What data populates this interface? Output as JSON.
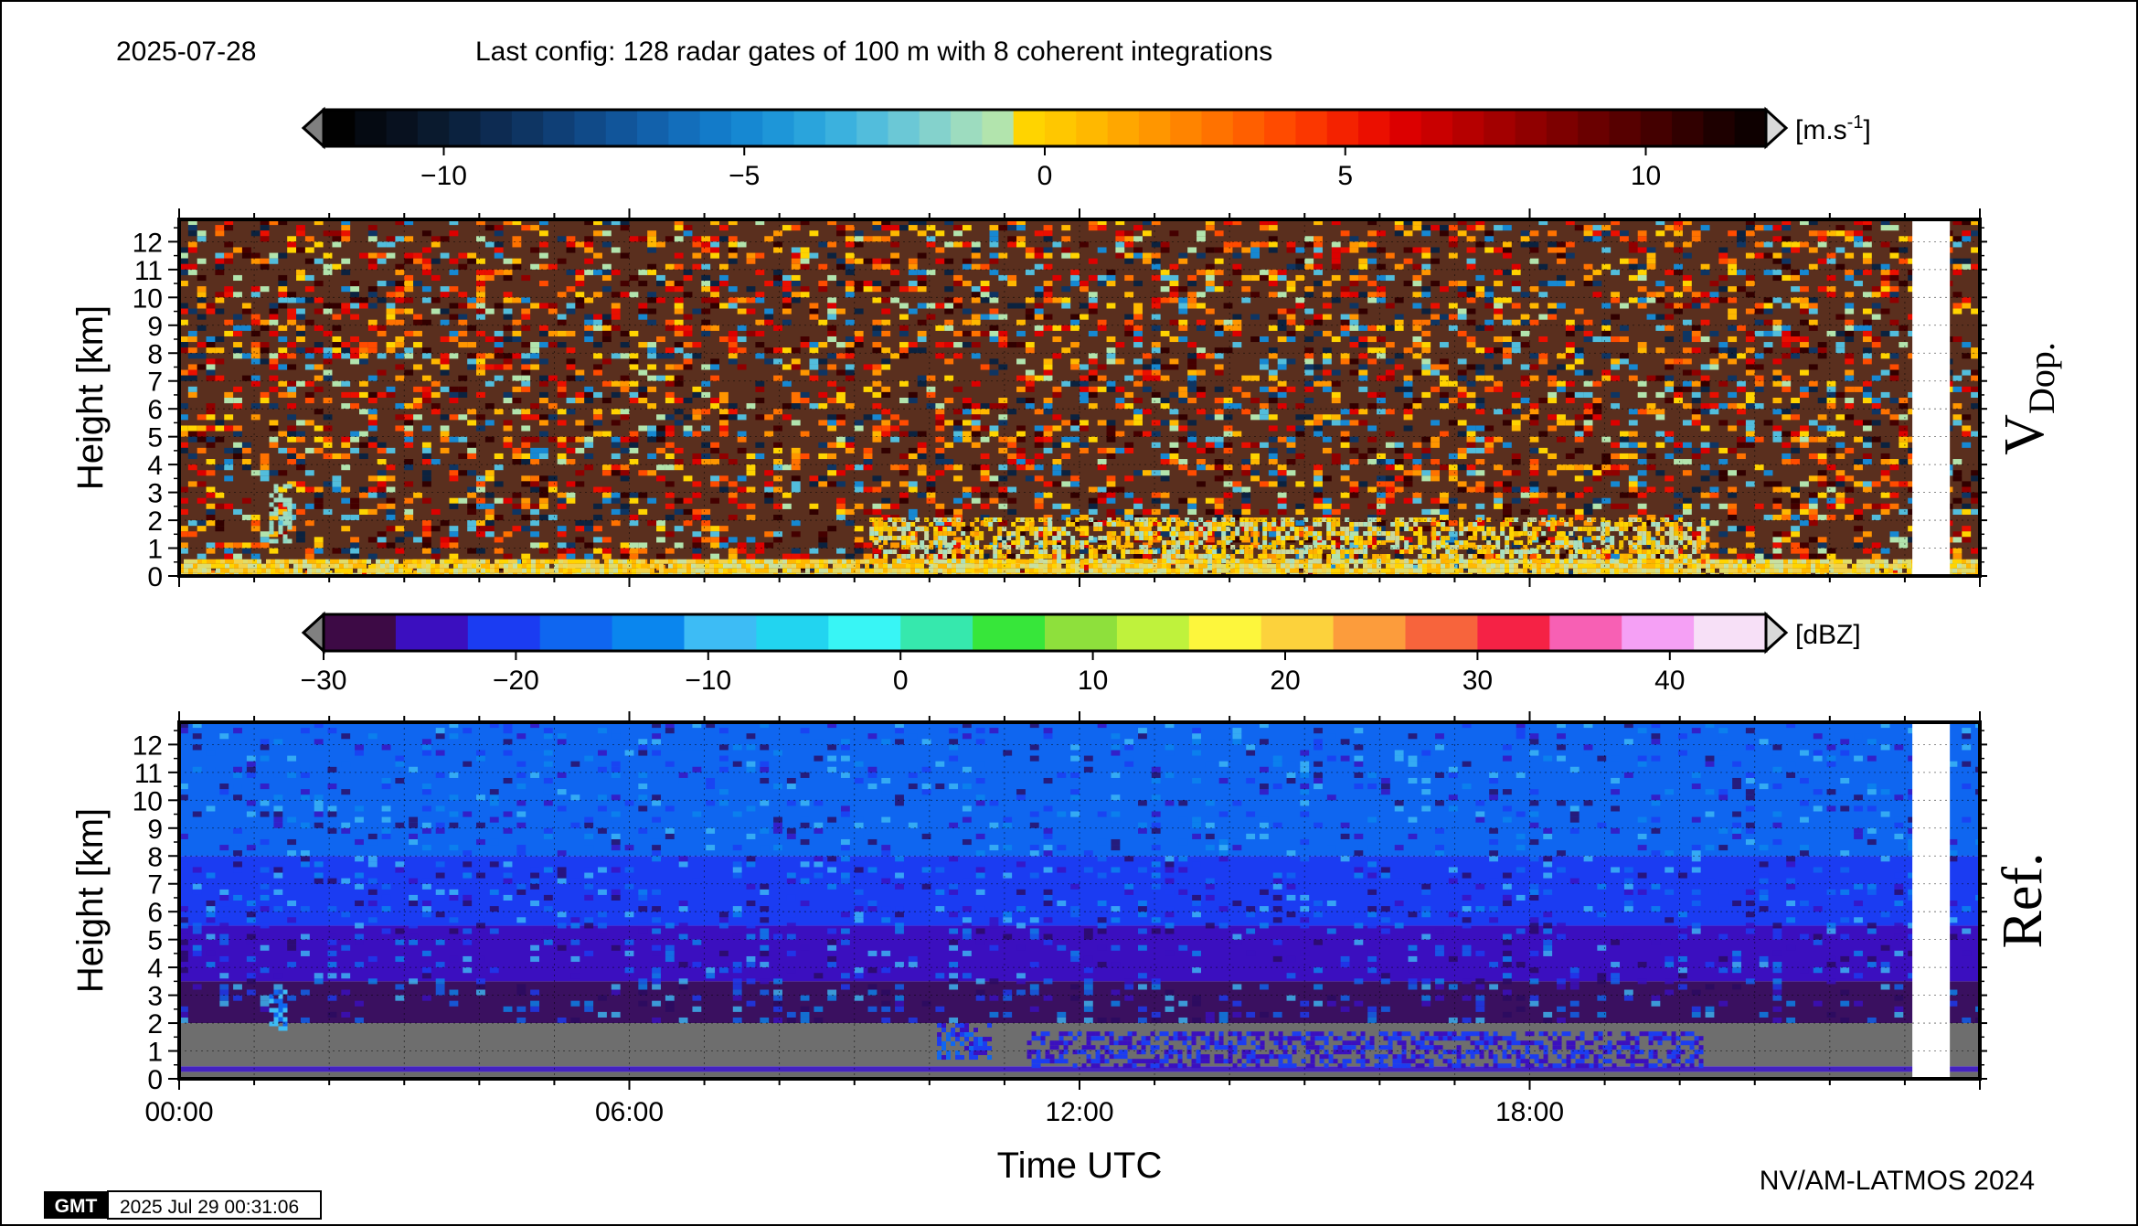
{
  "header": {
    "date": "2025-07-28",
    "config": "Last config: 128 radar gates of 100 m with 8 coherent integrations"
  },
  "footer": {
    "credit": "NV/AM-LATMOS 2024",
    "gmt_logo": "GMT",
    "gmt_timestamp": "2025 Jul 29 00:31:06"
  },
  "colors": {
    "frame": "#000000",
    "gap": "#ffffff",
    "noise_gray": "#6e6e6e"
  },
  "chart_data": [
    {
      "type": "heatmap",
      "panel_label": "V",
      "panel_label_sub": "Dop.",
      "ylabel": "Height [km]",
      "ylim": [
        0,
        12.8
      ],
      "yticks": [
        "0",
        "1",
        "2",
        "3",
        "4",
        "5",
        "6",
        "7",
        "8",
        "9",
        "10",
        "11",
        "12"
      ],
      "xlim": [
        0,
        24
      ],
      "data_gap_hours": [
        23.1,
        23.6
      ],
      "colorbar": {
        "unit_base": "[m.s",
        "unit_exp": "-1",
        "unit_close": "]",
        "range": [
          -12,
          12
        ],
        "tick_values": [
          -10,
          -5,
          0,
          5,
          10
        ],
        "tick_labels": [
          "−10",
          "−5",
          "0",
          "5",
          "10"
        ],
        "colors": [
          "#010101",
          "#050a12",
          "#08111f",
          "#0a1a2e",
          "#0b223f",
          "#0d2b52",
          "#0e3563",
          "#0f3f76",
          "#104a88",
          "#11559a",
          "#1261ab",
          "#136ebb",
          "#137bc9",
          "#1688d2",
          "#1e96d8",
          "#2aa4dc",
          "#3bb1de",
          "#52bddc",
          "#6bc8d6",
          "#84d2cc",
          "#9ddcbf",
          "#b2e4ad",
          "#ffd400",
          "#ffc700",
          "#ffb800",
          "#ffa700",
          "#ff9600",
          "#ff8400",
          "#ff7200",
          "#ff5f00",
          "#ff4b00",
          "#fb3700",
          "#f42200",
          "#eb0f00",
          "#dc0000",
          "#c90000",
          "#b60000",
          "#a30000",
          "#900000",
          "#7d0000",
          "#6a0000",
          "#570000",
          "#440000",
          "#310000",
          "#1e0000",
          "#0e0000"
        ]
      },
      "features": [
        {
          "label": "near-surface layer",
          "y": [
            0,
            0.6
          ],
          "x": [
            0,
            24
          ],
          "colors": [
            "#f2d24a",
            "#ffd400",
            "#ffb800",
            "#e0dc6a",
            "#c8e0a0"
          ]
        },
        {
          "label": "clouds 0.5-2 km",
          "y": [
            0.5,
            2.1
          ],
          "x": [
            9.2,
            20.3
          ],
          "colors": [
            "#ffd400",
            "#f2c200",
            "#c8d8a0",
            "#a8e0c0",
            "#ffb000"
          ]
        },
        {
          "label": "early echo",
          "y": [
            1.3,
            3.3
          ],
          "x": [
            1.2,
            1.5
          ],
          "colors": [
            "#8ed8c4",
            "#a0dcc0"
          ]
        }
      ],
      "noise_colors": [
        "#ff4b00",
        "#dc0000",
        "#900000",
        "#310000",
        "#0e3563",
        "#1688d2",
        "#52bddc",
        "#ffb800",
        "#ff7200",
        "#b2e4ad",
        "#ffd400",
        "#440000",
        "#0b223f",
        "#eb0f00",
        "#ff9600"
      ]
    },
    {
      "type": "heatmap",
      "panel_label": "Ref.",
      "ylabel": "Height [km]",
      "xlabel": "Time UTC",
      "ylim": [
        0,
        12.8
      ],
      "yticks": [
        "0",
        "1",
        "2",
        "3",
        "4",
        "5",
        "6",
        "7",
        "8",
        "9",
        "10",
        "11",
        "12"
      ],
      "xlim": [
        0,
        24
      ],
      "xticks": [
        0,
        6,
        12,
        18
      ],
      "xtick_labels": [
        "00:00",
        "06:00",
        "12:00",
        "18:00"
      ],
      "data_gap_hours": [
        23.1,
        23.6
      ],
      "colorbar": {
        "unit": "[dBZ]",
        "range": [
          -30,
          45
        ],
        "tick_values": [
          -30,
          -20,
          -10,
          0,
          10,
          20,
          30,
          40
        ],
        "tick_labels": [
          "−30",
          "−20",
          "−10",
          "0",
          "10",
          "20",
          "30",
          "40"
        ],
        "colors": [
          "#3d0a45",
          "#3b0fbf",
          "#1b3cf2",
          "#0f66f0",
          "#0a86ee",
          "#3dbcf5",
          "#22d4f0",
          "#38f5f5",
          "#36e8ad",
          "#37e63a",
          "#8ee03c",
          "#bff23c",
          "#fdf63c",
          "#fcd23c",
          "#fc9c3c",
          "#f7643c",
          "#f52245",
          "#f760b4",
          "#f5a0f5",
          "#f7e0f7"
        ]
      },
      "profile": [
        {
          "z": [
            0,
            0.25
          ],
          "color": "#6b6b6b"
        },
        {
          "z": [
            0.25,
            0.45
          ],
          "color": "#4422c0"
        },
        {
          "z": [
            0.45,
            2.0
          ],
          "color": "#6e6e6e"
        },
        {
          "z": [
            2.0,
            3.5
          ],
          "color": "#3a1060"
        },
        {
          "z": [
            3.5,
            5.5
          ],
          "color": "#3b0fbf"
        },
        {
          "z": [
            5.5,
            8.0
          ],
          "color": "#1b3cf2"
        },
        {
          "z": [
            8.0,
            12.8
          ],
          "color": "#0f66f0"
        }
      ],
      "features": [
        {
          "label": "echo around 11h",
          "y": [
            0.8,
            2.0
          ],
          "x": [
            10.1,
            10.8
          ],
          "colors": [
            "#3b0fbf",
            "#1b3cf2",
            "#0f66f0"
          ]
        },
        {
          "label": "low cloud",
          "y": [
            0.5,
            1.7
          ],
          "x": [
            11.3,
            20.3
          ],
          "colors": [
            "#3b0fbf",
            "#1b3cf2"
          ]
        },
        {
          "label": "early echo",
          "y": [
            1.8,
            3.2
          ],
          "x": [
            1.2,
            1.4
          ],
          "colors": [
            "#0f66f0",
            "#3dbcf5"
          ]
        }
      ]
    }
  ]
}
